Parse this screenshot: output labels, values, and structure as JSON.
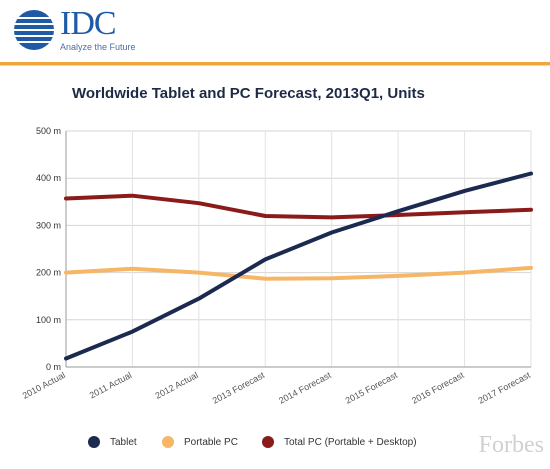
{
  "header": {
    "logo_text": "IDC",
    "logo_tagline": "Analyze the Future",
    "brand_color": "#1f5aa6",
    "rule_color": "#f0a63a"
  },
  "watermark": "Forbes",
  "chart_data": {
    "type": "line",
    "title": "Worldwide Tablet and PC Forecast, 2013Q1, Units",
    "xlabel": "",
    "ylabel": "",
    "categories": [
      "2010 Actual",
      "2011 Actual",
      "2012 Actual",
      "2013 Forecast",
      "2014 Forecast",
      "2015 Forecast",
      "2016 Forecast",
      "2017 Forecast"
    ],
    "ylim": [
      0,
      500
    ],
    "yticks": [
      0,
      100,
      200,
      300,
      400,
      500
    ],
    "ytick_labels": [
      "0 m",
      "100 m",
      "200 m",
      "300 m",
      "400 m",
      "500 m"
    ],
    "grid": true,
    "legend_position": "bottom",
    "series": [
      {
        "name": "Tablet",
        "color": "#1c2a4f",
        "values": [
          18,
          75,
          145,
          228,
          285,
          330,
          373,
          410
        ]
      },
      {
        "name": "Portable PC",
        "color": "#f5b668",
        "values": [
          200,
          208,
          200,
          187,
          188,
          193,
          200,
          210
        ]
      },
      {
        "name": "Total PC (Portable + Desktop)",
        "color": "#8b1a1a",
        "values": [
          357,
          363,
          347,
          320,
          317,
          322,
          328,
          333
        ]
      }
    ]
  }
}
